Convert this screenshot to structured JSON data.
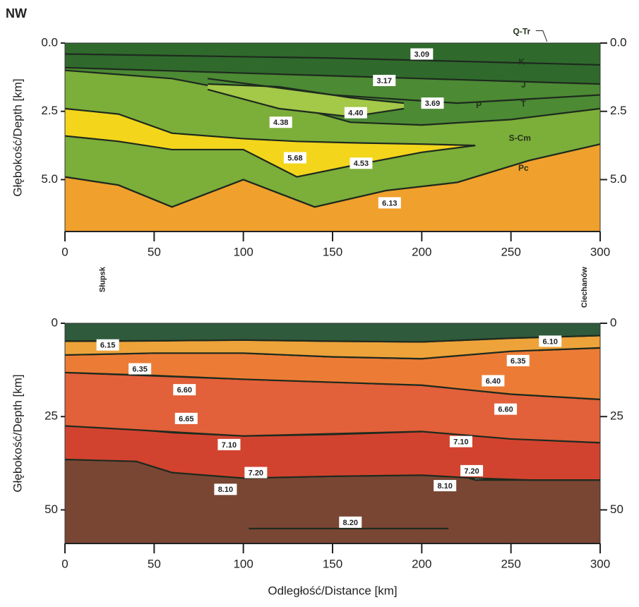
{
  "chart_data": [
    {
      "type": "section",
      "corner_label": "NW",
      "ylabel": "Głębokość/Depth [km]",
      "xlim": [
        0,
        300
      ],
      "ylim": [
        0,
        6.9
      ],
      "xticks": [
        0,
        50,
        100,
        150,
        200,
        250,
        300
      ],
      "yticks": [
        {
          "value": 0,
          "label": "0.0"
        },
        2.5,
        {
          "value": 5,
          "label": "5.0"
        }
      ],
      "places": [
        {
          "name": "Słupsk",
          "x": 30
        },
        {
          "name": "Ciechanów",
          "x": 300
        }
      ],
      "layers": [
        {
          "color": "#f0a02c",
          "x": [
            0,
            30,
            60,
            100,
            140,
            180,
            220,
            260,
            300
          ],
          "top": [
            4.9,
            5.2,
            6.0,
            5.0,
            6.0,
            5.4,
            5.1,
            4.3,
            3.7
          ],
          "bottom": [
            6.9,
            6.9,
            6.9,
            6.9,
            6.9,
            6.9,
            6.9,
            6.9,
            6.9
          ]
        },
        {
          "color": "#7cae3a",
          "x": [
            0,
            30,
            60,
            100,
            140,
            180,
            220,
            260,
            300
          ],
          "top": [
            0,
            0,
            0,
            0,
            0,
            0,
            0,
            0,
            0
          ],
          "bottom": [
            4.9,
            5.2,
            6.0,
            5.0,
            6.0,
            5.4,
            5.1,
            4.3,
            3.7
          ]
        },
        {
          "color": "#f3d51c",
          "x": [
            0,
            30,
            60,
            100,
            130,
            160,
            200,
            230
          ],
          "top": [
            2.4,
            2.6,
            3.3,
            3.5,
            3.6,
            3.65,
            3.7,
            3.75
          ],
          "bottom": [
            3.4,
            3.6,
            3.9,
            3.9,
            4.9,
            4.5,
            4.0,
            3.75
          ]
        },
        {
          "color": "#4c8a34",
          "x": [
            0,
            60,
            100,
            160,
            200,
            250,
            300
          ],
          "top": [
            0,
            0,
            0,
            0,
            0,
            0,
            0
          ],
          "bottom": [
            1.0,
            1.3,
            1.8,
            2.9,
            3.0,
            2.8,
            2.4
          ]
        },
        {
          "color": "#a4c848",
          "x": [
            80,
            120,
            160,
            190
          ],
          "top": [
            1.5,
            1.6,
            2.0,
            2.2
          ],
          "bottom": [
            1.7,
            2.4,
            2.7,
            2.4
          ]
        },
        {
          "color": "#2f6a2c",
          "x": [
            0,
            100,
            200,
            300
          ],
          "top": [
            0,
            0,
            0,
            0
          ],
          "bottom": [
            0.9,
            1.1,
            1.3,
            1.5
          ]
        }
      ],
      "boundaries": [
        {
          "x": [
            0,
            150,
            300
          ],
          "values": [
            0.4,
            0.55,
            0.8
          ]
        },
        {
          "x": [
            80,
            150,
            220,
            300
          ],
          "values": [
            1.3,
            1.9,
            2.2,
            1.9
          ]
        }
      ],
      "units": [
        {
          "text": "Q-Tr",
          "x": 256,
          "y": -0.4
        },
        {
          "text": "K",
          "x": 256,
          "y": 0.7
        },
        {
          "text": "J",
          "x": 257,
          "y": 1.55
        },
        {
          "text": "T",
          "x": 257,
          "y": 2.25
        },
        {
          "text": "P",
          "x": 232,
          "y": 2.3
        },
        {
          "text": "S-Cm",
          "x": 255,
          "y": 3.5
        },
        {
          "text": "Pc",
          "x": 257,
          "y": 4.6
        }
      ],
      "labels": [
        {
          "text": "3.09",
          "x": 200,
          "y": 0.4
        },
        {
          "text": "3.17",
          "x": 179,
          "y": 1.37
        },
        {
          "text": "3.69",
          "x": 206,
          "y": 2.2
        },
        {
          "text": "4.38",
          "x": 121,
          "y": 2.9
        },
        {
          "text": "4.40",
          "x": 163,
          "y": 2.55
        },
        {
          "text": "5.68",
          "x": 129,
          "y": 4.2
        },
        {
          "text": "4.53",
          "x": 166,
          "y": 4.4
        },
        {
          "text": "6.13",
          "x": 182,
          "y": 5.85
        }
      ]
    },
    {
      "type": "section",
      "ylabel": "Głębokość/Depth [km]",
      "xlabel": "Odległość/Distance [km]",
      "xlim": [
        0,
        300
      ],
      "ylim": [
        0,
        59
      ],
      "xticks": [
        0,
        50,
        100,
        150,
        200,
        250,
        300
      ],
      "yticks": [
        0,
        25,
        50
      ],
      "layers": [
        {
          "color": "#7a4634",
          "x": [
            0,
            40,
            60,
            100,
            150,
            220,
            230,
            300
          ],
          "top": [
            36.5,
            37,
            40,
            41.5,
            41,
            40.5,
            42,
            42
          ],
          "bottom": [
            59,
            59,
            59,
            59,
            59,
            59,
            59,
            59
          ]
        },
        {
          "color": "#d2432f",
          "x": [
            0,
            40,
            60,
            100,
            150,
            200,
            230,
            260,
            300
          ],
          "top": [
            27.5,
            28.5,
            29.3,
            30.2,
            29.8,
            29,
            29,
            31,
            32
          ],
          "bottom": [
            36.5,
            37,
            40,
            41.5,
            41,
            40.7,
            41.5,
            42,
            42
          ]
        },
        {
          "color": "#e2603a",
          "x": [
            0,
            100,
            200,
            250,
            300
          ],
          "top": [
            13.2,
            15,
            16.6,
            19,
            20.4
          ],
          "bottom": [
            27.5,
            30.2,
            29,
            31,
            32
          ]
        },
        {
          "color": "#ec7c35",
          "x": [
            0,
            50,
            100,
            150,
            200,
            250,
            300
          ],
          "top": [
            8.5,
            8,
            8,
            9,
            9.5,
            7.5,
            6.6
          ],
          "bottom": [
            13.2,
            14,
            15,
            15.8,
            16.6,
            19,
            20.4
          ]
        },
        {
          "color": "#eda33a",
          "x": [
            0,
            50,
            100,
            150,
            200,
            250,
            300
          ],
          "top": [
            4.8,
            4.7,
            4.5,
            4.8,
            5,
            4,
            3.3
          ],
          "bottom": [
            8.5,
            8,
            8,
            9,
            9.5,
            7.5,
            6.6
          ]
        },
        {
          "color": "#2f5a3c",
          "x": [
            0,
            50,
            100,
            150,
            200,
            250,
            300
          ],
          "top": [
            0,
            0,
            0,
            0,
            0,
            0,
            0
          ],
          "bottom": [
            4.8,
            4.7,
            4.5,
            4.8,
            5,
            4,
            3.3
          ]
        }
      ],
      "boundaries": [
        {
          "x": [
            103,
            215
          ],
          "values": [
            55,
            55
          ]
        }
      ],
      "labels": [
        {
          "text": "6.15",
          "x": 24,
          "y": 5.8
        },
        {
          "text": "6.10",
          "x": 272,
          "y": 4.8
        },
        {
          "text": "6.35",
          "x": 42,
          "y": 12.2
        },
        {
          "text": "6.35",
          "x": 254,
          "y": 10
        },
        {
          "text": "6.60",
          "x": 67,
          "y": 17.8
        },
        {
          "text": "6.40",
          "x": 240,
          "y": 15.4
        },
        {
          "text": "6.65",
          "x": 68,
          "y": 25.5
        },
        {
          "text": "6.60",
          "x": 247,
          "y": 23
        },
        {
          "text": "7.10",
          "x": 92,
          "y": 32.5
        },
        {
          "text": "7.10",
          "x": 222,
          "y": 31.7
        },
        {
          "text": "7.20",
          "x": 107,
          "y": 40
        },
        {
          "text": "7.20",
          "x": 228,
          "y": 39.5
        },
        {
          "text": "8.10",
          "x": 90,
          "y": 44.5
        },
        {
          "text": "8.10",
          "x": 213,
          "y": 43.5
        },
        {
          "text": "8.20",
          "x": 160,
          "y": 53.3
        }
      ]
    }
  ]
}
